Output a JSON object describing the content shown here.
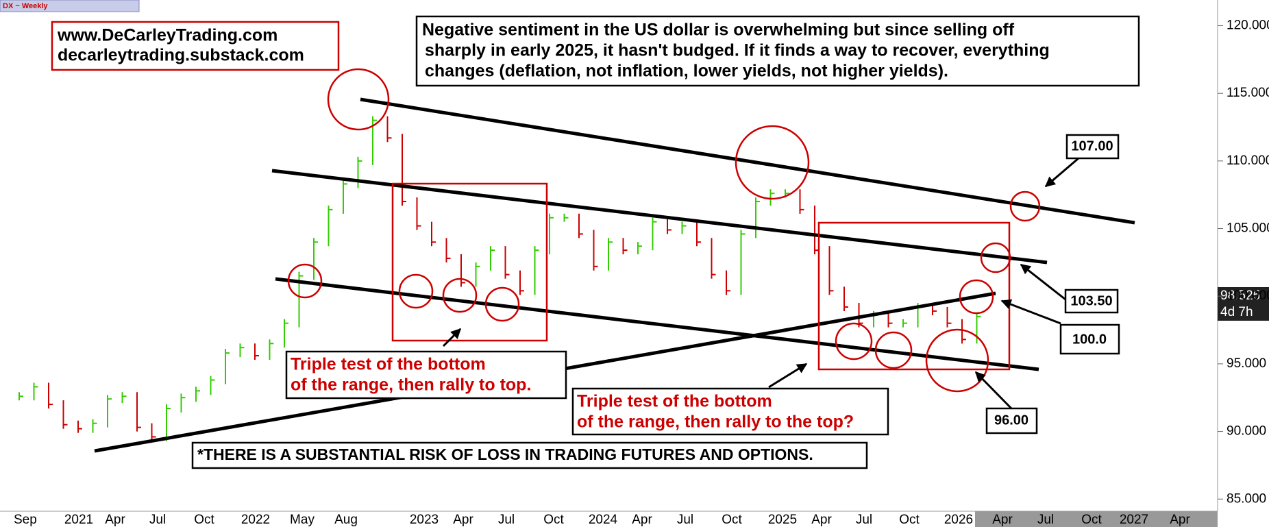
{
  "chart_data": {
    "type": "bar-chart",
    "symbol_label": "DX ~ Weekly",
    "website_lines": [
      "www.DeCarleyTrading.com",
      "decarleytrading.substack.com"
    ],
    "note_lines": [
      "Negative sentiment in the US dollar is overwhelming but since selling off",
      "sharply in early 2025, it hasn't budged. If it finds a way to recover, everything",
      "changes (deflation, not inflation, lower yields, not higher yields)."
    ],
    "annotation_1_lines": [
      "Triple test of the bottom",
      "of the range, then rally to top."
    ],
    "annotation_2_lines": [
      "Triple test of the bottom",
      "of the range, then rally to the top?"
    ],
    "disclaimer": "*THERE IS A SUBSTANTIAL RISK OF LOSS IN TRADING FUTURES AND OPTIONS.",
    "level_labels": [
      "107.00",
      "103.50",
      "100.0",
      "96.00"
    ],
    "last_price_label": "98.525",
    "time_left_label": "4d 7h",
    "x_labels": [
      "Sep",
      "2021",
      "Apr",
      "Jul",
      "Oct",
      "2022",
      "May",
      "Aug",
      "2023",
      "Apr",
      "Jul",
      "Oct",
      "2024",
      "Apr",
      "Jul",
      "Oct",
      "2025",
      "Apr",
      "Jul",
      "Oct",
      "2026",
      "Apr",
      "Jul",
      "Oct",
      "2027",
      "Apr"
    ],
    "values": [
      92.6,
      93.3,
      92.0,
      90.5,
      90.2,
      90.6,
      92.4,
      92.6,
      90.3,
      89.6,
      91.7,
      92.5,
      93.0,
      93.8,
      95.8,
      96.2,
      95.6,
      96.5,
      98.0,
      101.5,
      104.0,
      106.4,
      108.3,
      110.0,
      113.0,
      111.7,
      107.0,
      105.2,
      104.0,
      102.8,
      101.0,
      102.2,
      103.4,
      101.6,
      100.4,
      103.4,
      105.8,
      105.8,
      104.6,
      102.2,
      104.0,
      103.4,
      103.7,
      105.5,
      104.9,
      105.2,
      104.0,
      101.6,
      100.4,
      104.6,
      107.0,
      107.6,
      107.6,
      106.4,
      103.4,
      100.4,
      99.2,
      98.0,
      98.6,
      98.0,
      98.0,
      99.2,
      98.9,
      98.0,
      96.8,
      98.5
    ],
    "up_color": "#33cc00",
    "down_color": "#cc0000",
    "ylim": [
      84.1,
      121.9
    ],
    "yticks": [
      {
        "value": 85,
        "label": "85.000"
      },
      {
        "value": 90,
        "label": "90.000"
      },
      {
        "value": 95,
        "label": "95.000"
      },
      {
        "value": 100,
        "label": "100.000"
      },
      {
        "value": 105,
        "label": "105.000"
      },
      {
        "value": 110,
        "label": "110.000"
      },
      {
        "value": 115,
        "label": "115.000"
      },
      {
        "value": 120,
        "label": "120.000"
      }
    ]
  }
}
